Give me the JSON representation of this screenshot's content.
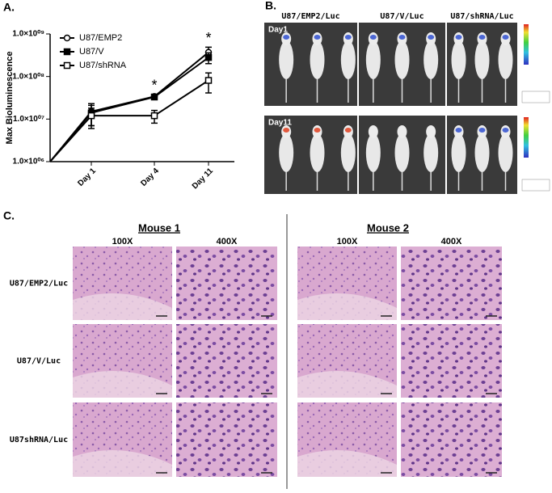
{
  "chart_data": {
    "type": "line",
    "label": "A.",
    "ylabel": "Max Bioluminescence",
    "categories": [
      null,
      "Day 1",
      "Day 4",
      "Day 11"
    ],
    "log_scale": true,
    "ylim": [
      1000000,
      1000000000
    ],
    "yticks": [
      {
        "value": 1000000,
        "label": "1.0×10⁰⁶"
      },
      {
        "value": 10000000,
        "label": "1.0×10⁰⁷"
      },
      {
        "value": 100000000,
        "label": "1.0×10⁰⁸"
      },
      {
        "value": 1000000000,
        "label": "1.0×10⁰⁹"
      }
    ],
    "grid": false,
    "legend": "top-left",
    "series": [
      {
        "name": "U87/EMP2",
        "color": "#000000",
        "marker": "circle-open",
        "values": [
          1000000,
          15000000,
          34000000,
          370000000
        ],
        "errors": [
          null,
          8000000,
          4000000,
          120000000
        ]
      },
      {
        "name": "U87/V",
        "color": "#000000",
        "marker": "square-filled",
        "values": [
          1000000,
          14000000,
          33000000,
          280000000
        ],
        "errors": [
          null,
          7000000,
          4000000,
          80000000
        ]
      },
      {
        "name": "U87/shRNA",
        "color": "#000000",
        "marker": "square-open",
        "values": [
          1000000,
          12000000,
          12000000,
          81000000
        ],
        "errors": [
          null,
          6000000,
          4000000,
          40000000
        ]
      }
    ],
    "annotations": [
      {
        "text": "*",
        "x": "Day 4"
      },
      {
        "text": "*",
        "x": "Day 11"
      }
    ]
  },
  "panel_b": {
    "label": "B.",
    "columns": [
      "U87/EMP2/Luc",
      "U87/V/Luc",
      "U87/shRNA/Luc"
    ],
    "rows": [
      "Day1",
      "Day11"
    ]
  },
  "panel_c": {
    "label": "C.",
    "mice": [
      "Mouse 1",
      "Mouse 2"
    ],
    "magnifications": [
      "100X",
      "400X",
      "100X",
      "400X"
    ],
    "rows": [
      "U87/EMP2/Luc",
      "U87/V/Luc",
      "U87shRNA/Luc"
    ]
  }
}
